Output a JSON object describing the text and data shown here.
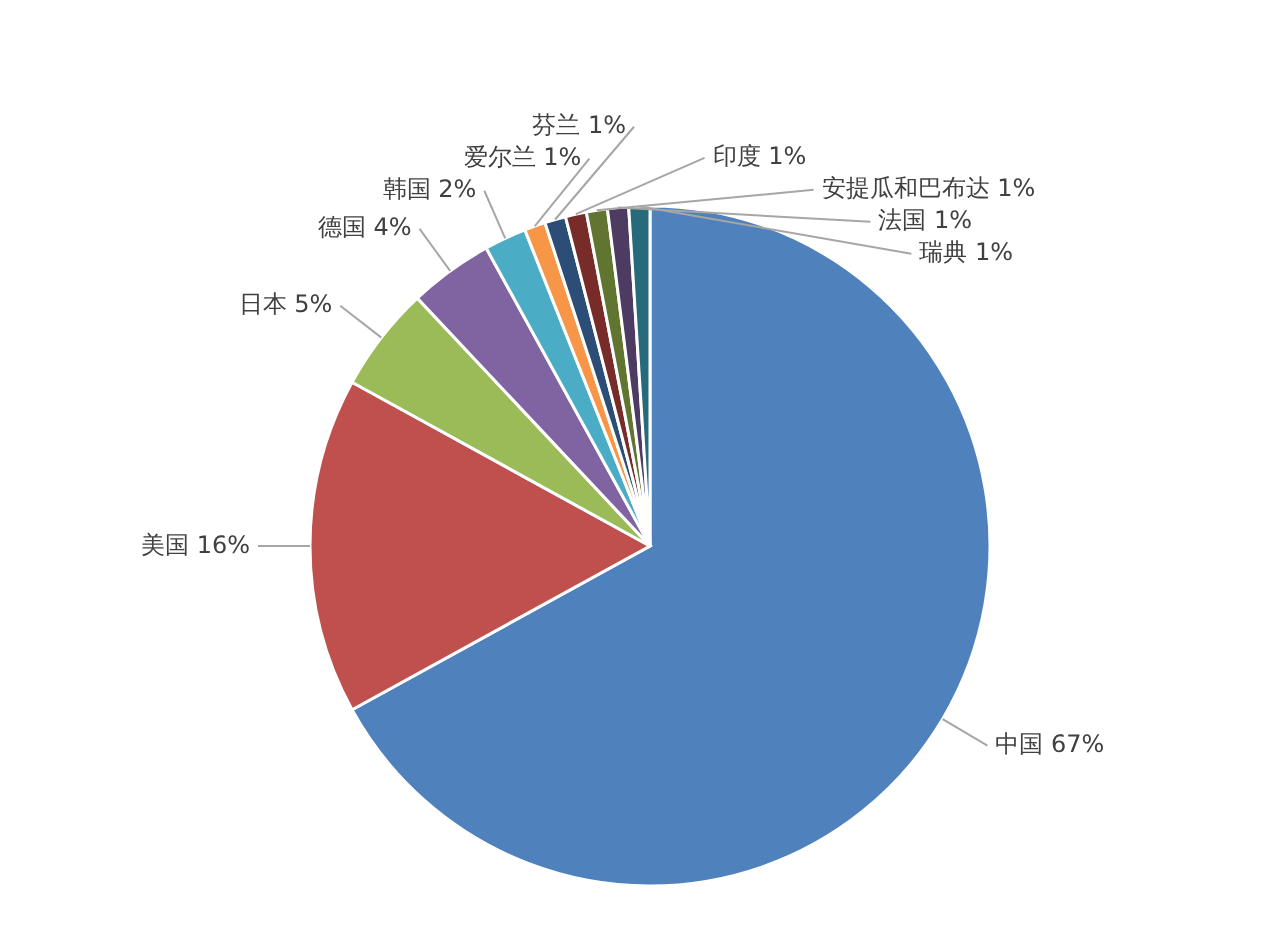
{
  "chart_data": {
    "type": "pie",
    "categories": [
      "中国",
      "美国",
      "日本",
      "德国",
      "韩国",
      "爱尔兰",
      "芬兰",
      "印度",
      "安提瓜和巴布达",
      "法国",
      "瑞典"
    ],
    "values": [
      67,
      16,
      5,
      4,
      2,
      1,
      1,
      1,
      1,
      1,
      1
    ],
    "value_labels": [
      "67%",
      "16%",
      "5%",
      "4%",
      "2%",
      "1%",
      "1%",
      "1%",
      "1%",
      "1%",
      "1%"
    ],
    "colors": [
      "#4f81bd",
      "#c0504d",
      "#9bbb59",
      "#8064a2",
      "#4bacc6",
      "#f79646",
      "#2c4d75",
      "#772c2a",
      "#5f7530",
      "#4d3b62",
      "#276a7c"
    ]
  }
}
